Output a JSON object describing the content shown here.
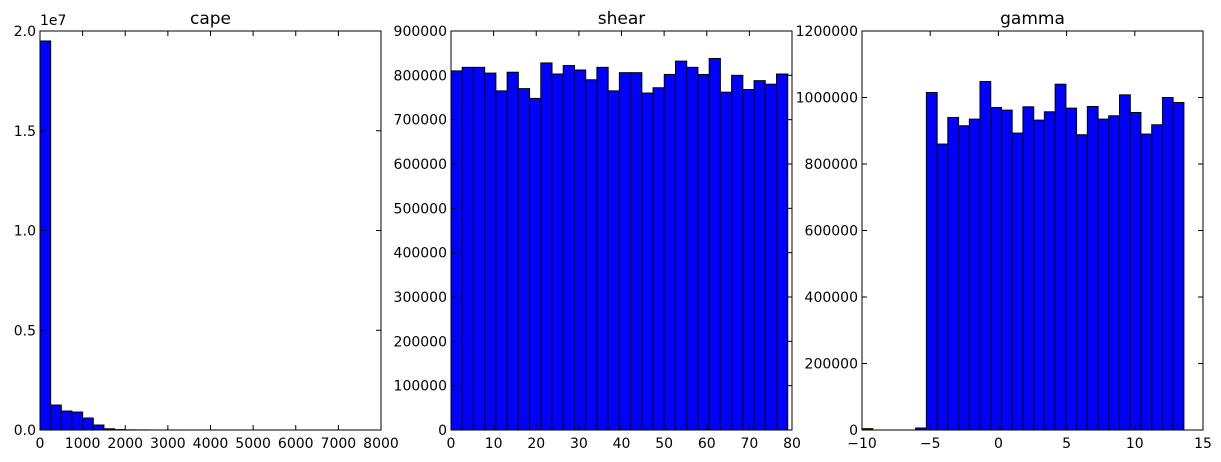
{
  "chart_data": [
    {
      "type": "histogram",
      "title": "cape",
      "color": "#0000ff",
      "bins": [
        0,
        250,
        500,
        750,
        1000,
        1250,
        1500,
        1750,
        2000,
        2250,
        2500,
        2750,
        3000,
        3250,
        3500,
        3750,
        4000,
        4250,
        4500,
        4750,
        5000,
        5250,
        5500,
        5750,
        6000,
        6250,
        6500,
        6750,
        7000,
        7250,
        7500
      ],
      "values": [
        19500000,
        1250000,
        950000,
        900000,
        600000,
        250000,
        60000,
        20000,
        8000,
        4000,
        2000,
        1000,
        500,
        300,
        200,
        100,
        50,
        30,
        20,
        10,
        5,
        3,
        2,
        1,
        1,
        0,
        0,
        0,
        0,
        1
      ],
      "xlim": [
        0,
        8000
      ],
      "xticks": [
        0,
        1000,
        2000,
        3000,
        4000,
        5000,
        6000,
        7000,
        8000
      ],
      "ylim": [
        0,
        20000000
      ],
      "yticks": [
        {
          "value": 0,
          "label": "0.0"
        },
        {
          "value": 5000000,
          "label": "0.5"
        },
        {
          "value": 10000000,
          "label": "1.0"
        },
        {
          "value": 15000000,
          "label": "1.5"
        },
        {
          "value": 20000000,
          "label": "2.0"
        }
      ],
      "y_offset_label": "1e7"
    },
    {
      "type": "histogram",
      "title": "shear",
      "color": "#0000ff",
      "bins": [
        0,
        2.63,
        5.27,
        7.9,
        10.53,
        13.17,
        15.8,
        18.43,
        21.07,
        23.7,
        26.33,
        28.97,
        31.6,
        34.23,
        36.87,
        39.5,
        42.13,
        44.77,
        47.4,
        50.03,
        52.67,
        55.3,
        57.93,
        60.57,
        63.2,
        65.83,
        68.47,
        71.1,
        73.73,
        76.37,
        79
      ],
      "values": [
        810000,
        818000,
        818000,
        805000,
        765000,
        807000,
        770000,
        748000,
        828000,
        803000,
        822000,
        812000,
        790000,
        818000,
        765000,
        806000,
        806000,
        760000,
        772000,
        802000,
        832000,
        818000,
        802000,
        838000,
        762000,
        800000,
        768000,
        788000,
        780000,
        803000
      ],
      "xlim": [
        0,
        80
      ],
      "xticks": [
        0,
        10,
        20,
        30,
        40,
        50,
        60,
        70,
        80
      ],
      "ylim": [
        0,
        900000
      ],
      "yticks": [
        0,
        100000,
        200000,
        300000,
        400000,
        500000,
        600000,
        700000,
        800000,
        900000
      ]
    },
    {
      "type": "histogram",
      "title": "gamma",
      "color": "#0000ff",
      "bins": [
        -10,
        -9.21,
        -8.43,
        -7.64,
        -6.85,
        -6.07,
        -5.28,
        -4.49,
        -3.71,
        -2.92,
        -2.13,
        -1.35,
        -0.56,
        0.23,
        1.01,
        1.8,
        2.59,
        3.37,
        4.16,
        4.95,
        5.73,
        6.52,
        7.31,
        8.09,
        8.88,
        9.67,
        10.45,
        11.24,
        12.03,
        12.81,
        13.6
      ],
      "values": [
        4000,
        0,
        0,
        0,
        0,
        6000,
        1015000,
        860000,
        940000,
        915000,
        935000,
        1048000,
        970000,
        962000,
        893000,
        972000,
        932000,
        957000,
        1040000,
        968000,
        888000,
        973000,
        935000,
        945000,
        1008000,
        955000,
        890000,
        918000,
        1000000,
        985000
      ],
      "xlim": [
        -10,
        15
      ],
      "xticks": [
        {
          "value": -10,
          "label": "−10"
        },
        {
          "value": -5,
          "label": "−5"
        },
        0,
        5,
        10,
        15
      ],
      "ylim": [
        0,
        1200000
      ],
      "yticks": [
        0,
        200000,
        400000,
        600000,
        800000,
        1000000,
        1200000
      ]
    }
  ]
}
